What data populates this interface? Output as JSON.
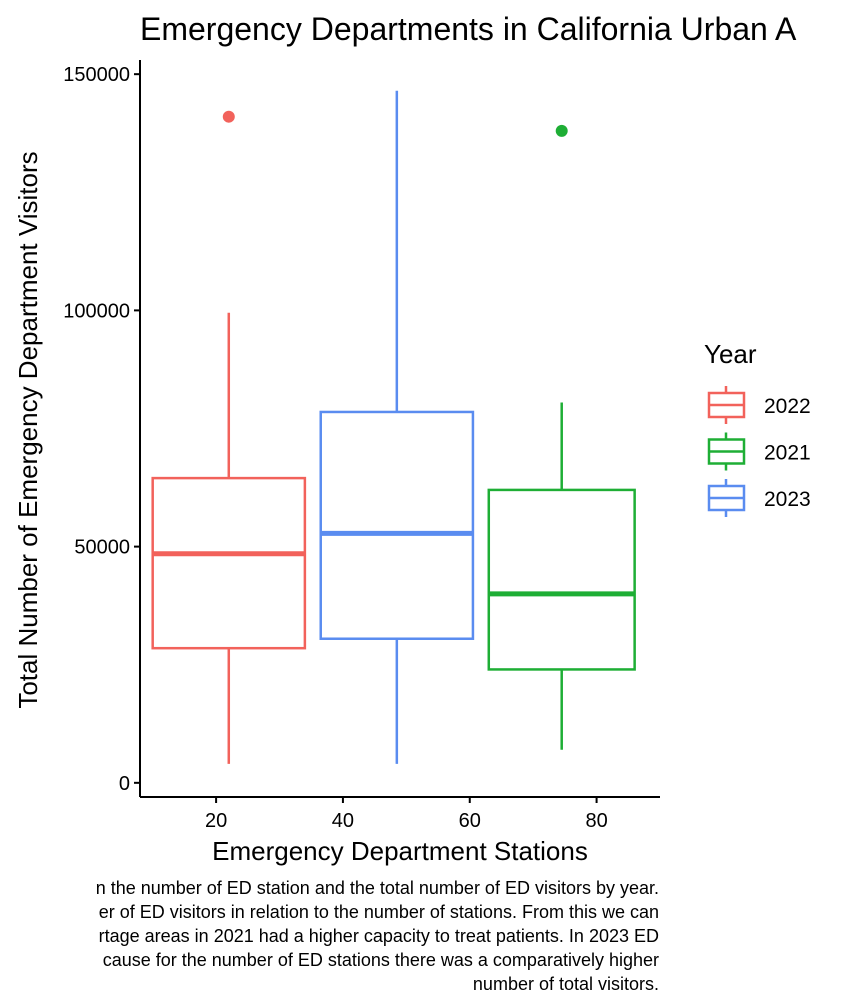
{
  "chart_data": {
    "type": "boxplot",
    "title": "Emergency Departments in California Urban A",
    "xlabel": "Emergency Department Stations",
    "ylabel": "Total Number of Emergency Department Visitors",
    "xlim": [
      8,
      90
    ],
    "ylim": [
      -3000,
      153000
    ],
    "xticks": [
      20,
      40,
      60,
      80
    ],
    "yticks": [
      0,
      50000,
      100000,
      150000
    ],
    "legend": {
      "title": "Year",
      "position": "right"
    },
    "series": [
      {
        "name": "2022",
        "color": "#F2625B",
        "x_center": 22,
        "x_range": [
          10,
          34
        ],
        "whisker_low": 4000,
        "q1": 28500,
        "median": 48500,
        "q3": 64500,
        "whisker_high": 99500,
        "outliers": [
          141000
        ]
      },
      {
        "name": "2021",
        "color": "#1EAE35",
        "x_center": 74.5,
        "x_range": [
          63,
          86
        ],
        "whisker_low": 7000,
        "q1": 24000,
        "median": 40000,
        "q3": 62000,
        "whisker_high": 80500,
        "outliers": [
          138000
        ]
      },
      {
        "name": "2023",
        "color": "#5A8CF0",
        "x_center": 48.5,
        "x_range": [
          36.5,
          60.5
        ],
        "whisker_low": 4000,
        "q1": 30500,
        "median": 52800,
        "q3": 78500,
        "whisker_high": 146500,
        "outliers": []
      }
    ]
  },
  "caption_lines": [
    "n the number of ED station and the total number of ED visitors by year.",
    "er of ED visitors in relation to the number of stations. From this we can",
    "rtage areas in 2021 had a higher capacity to treat patients. In 2023 ED",
    "cause for the number of ED stations there was a comparatively higher",
    "number of total visitors."
  ]
}
